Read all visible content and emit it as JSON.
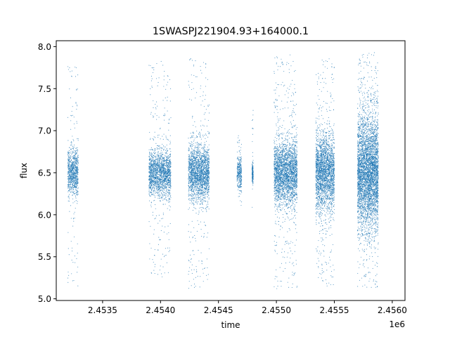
{
  "chart_data": {
    "type": "scatter",
    "title": "1SWASPJ221904.93+164000.1",
    "xlabel": "time",
    "ylabel": "flux",
    "x_offset_label": "1e6",
    "xlim": [
      2453100,
      2456110
    ],
    "ylim": [
      4.98,
      8.07
    ],
    "xticks": [
      2453500,
      2454000,
      2454500,
      2455000,
      2455500,
      2456000
    ],
    "xtick_labels": [
      "2.4535",
      "2.4540",
      "2.4545",
      "2.4550",
      "2.4555",
      "2.4560"
    ],
    "yticks": [
      5.0,
      5.5,
      6.0,
      6.5,
      7.0,
      7.5,
      8.0
    ],
    "ytick_labels": [
      "5.0",
      "5.5",
      "6.0",
      "6.5",
      "7.0",
      "7.5",
      "8.0"
    ],
    "grid": false,
    "marker_color": "#1f77b4",
    "series": [
      {
        "values": [
          {
            "season_time_range": [
              2453200,
              2453290
            ],
            "flux_median": 6.5,
            "flux_core_range": [
              6.25,
              6.75
            ],
            "flux_full_range": [
              5.15,
              7.78
            ]
          },
          {
            "season_time_range": [
              2453900,
              2454090
            ],
            "flux_median": 6.5,
            "flux_core_range": [
              6.25,
              6.75
            ],
            "flux_full_range": [
              5.25,
              7.85
            ]
          },
          {
            "season_time_range": [
              2454240,
              2454420
            ],
            "flux_median": 6.5,
            "flux_core_range": [
              6.2,
              6.8
            ],
            "flux_full_range": [
              5.12,
              7.87
            ]
          },
          {
            "season_time_range": [
              2454660,
              2454700
            ],
            "flux_median": 6.5,
            "flux_core_range": [
              6.3,
              6.7
            ],
            "flux_full_range": [
              6.1,
              6.95
            ]
          },
          {
            "season_time_range": [
              2454790,
              2454800
            ],
            "flux_median": 6.5,
            "flux_core_range": [
              6.4,
              6.6
            ],
            "flux_full_range": [
              5.95,
              7.5
            ]
          },
          {
            "season_time_range": [
              2454980,
              2455180
            ],
            "flux_median": 6.5,
            "flux_core_range": [
              6.15,
              6.85
            ],
            "flux_full_range": [
              5.12,
              7.93
            ]
          },
          {
            "season_time_range": [
              2455340,
              2455500
            ],
            "flux_median": 6.5,
            "flux_core_range": [
              6.1,
              6.9
            ],
            "flux_full_range": [
              5.15,
              7.87
            ]
          },
          {
            "season_time_range": [
              2455700,
              2455880
            ],
            "flux_median": 6.5,
            "flux_core_range": [
              5.9,
              7.1
            ],
            "flux_full_range": [
              5.13,
              7.93
            ]
          }
        ]
      }
    ]
  }
}
